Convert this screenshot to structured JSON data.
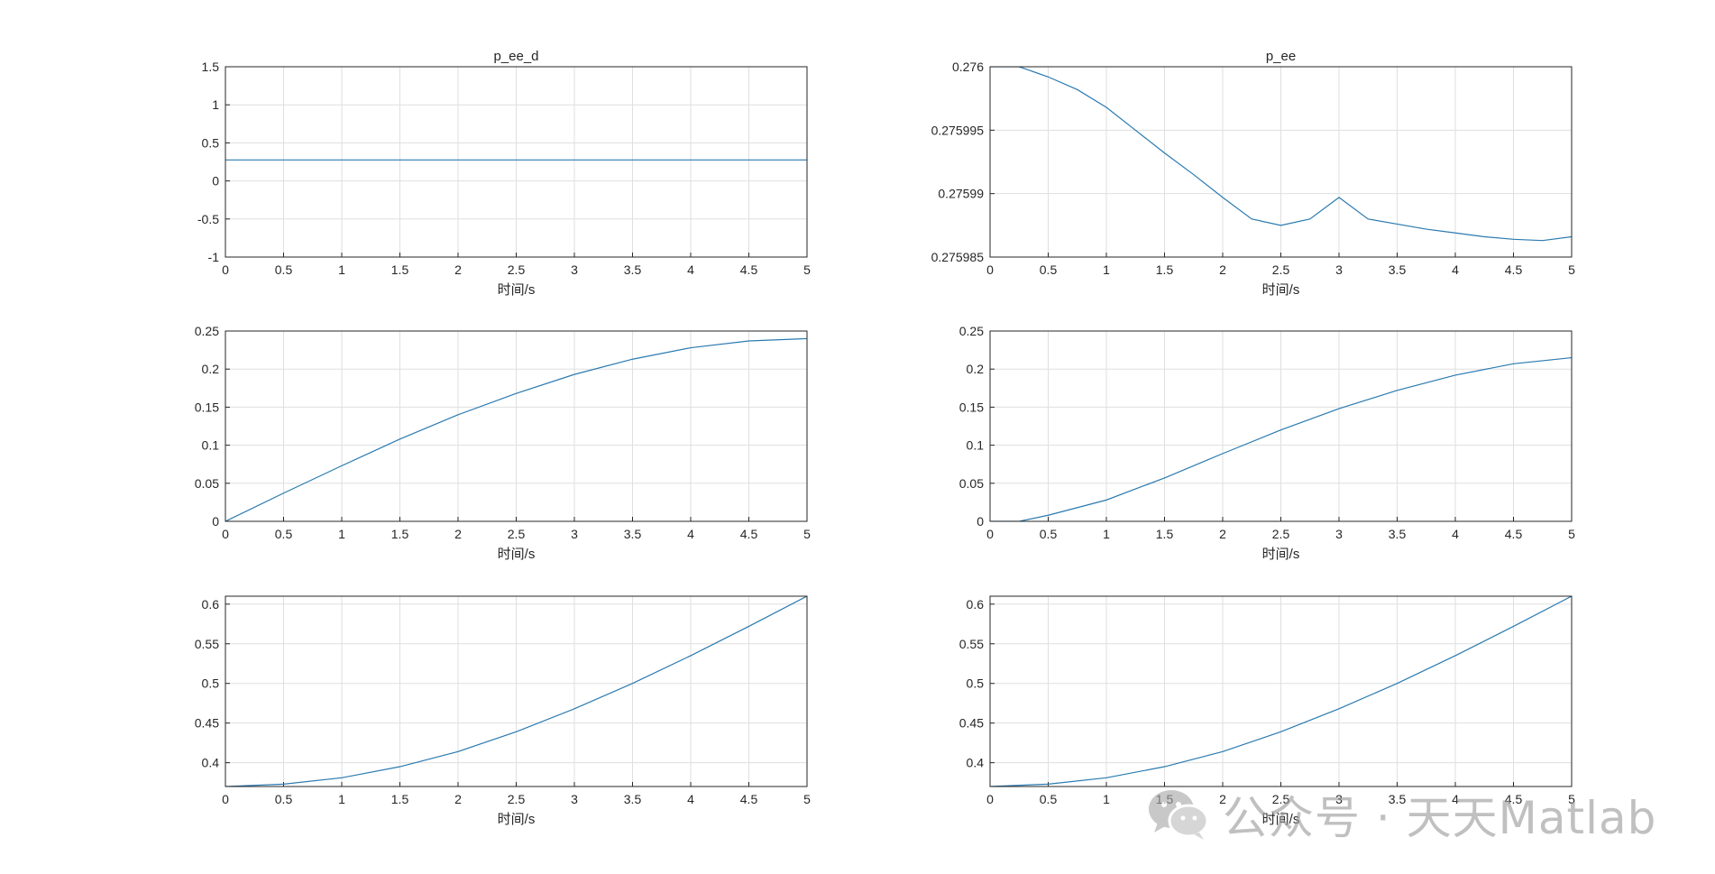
{
  "figure": {
    "line_color": "#2a7ab0",
    "axes_color": "#262626",
    "grid_color": "#dfdfdf"
  },
  "chart_data": [
    {
      "type": "line",
      "title": "p_ee_d",
      "xlabel": "时间/s",
      "ylabel": "",
      "xlim": [
        0,
        5
      ],
      "ylim": [
        -1,
        1.5
      ],
      "xticks": [
        "0",
        "0.5",
        "1",
        "1.5",
        "2",
        "2.5",
        "3",
        "3.5",
        "4",
        "4.5",
        "5"
      ],
      "yticks": [
        "-1",
        "-0.5",
        "0",
        "0.5",
        "1",
        "1.5"
      ],
      "grid": true,
      "series": [
        {
          "x": [
            0,
            0.5,
            1,
            1.5,
            2,
            2.5,
            3,
            3.5,
            4,
            4.5,
            5
          ],
          "y": [
            0.276,
            0.276,
            0.276,
            0.276,
            0.276,
            0.276,
            0.276,
            0.276,
            0.276,
            0.276,
            0.276
          ]
        }
      ]
    },
    {
      "type": "line",
      "title": "p_ee",
      "xlabel": "时间/s",
      "ylabel": "",
      "xlim": [
        0,
        5
      ],
      "ylim": [
        0.275985,
        0.276
      ],
      "xticks": [
        "0",
        "0.5",
        "1",
        "1.5",
        "2",
        "2.5",
        "3",
        "3.5",
        "4",
        "4.5",
        "5"
      ],
      "yticks": [
        "0.275985",
        "0.27599",
        "0.275995",
        "0.276"
      ],
      "grid": true,
      "series": [
        {
          "x": [
            0,
            0.25,
            0.5,
            0.75,
            1,
            1.25,
            1.5,
            1.75,
            2,
            2.25,
            2.5,
            2.75,
            3,
            3.25,
            3.5,
            3.75,
            4,
            4.25,
            4.5,
            4.75,
            5
          ],
          "y": [
            0.276,
            0.276,
            0.2759992,
            0.2759982,
            0.2759968,
            0.275995,
            0.2759932,
            0.2759915,
            0.2759897,
            0.275988,
            0.2759875,
            0.275988,
            0.2759897,
            0.275988,
            0.2759876,
            0.2759872,
            0.2759869,
            0.2759866,
            0.2759864,
            0.2759863,
            0.2759866
          ]
        }
      ]
    },
    {
      "type": "line",
      "title": "",
      "xlabel": "时间/s",
      "ylabel": "",
      "xlim": [
        0,
        5
      ],
      "ylim": [
        0,
        0.25
      ],
      "xticks": [
        "0",
        "0.5",
        "1",
        "1.5",
        "2",
        "2.5",
        "3",
        "3.5",
        "4",
        "4.5",
        "5"
      ],
      "yticks": [
        "0",
        "0.05",
        "0.1",
        "0.15",
        "0.2",
        "0.25"
      ],
      "grid": true,
      "series": [
        {
          "x": [
            0,
            0.5,
            1,
            1.5,
            2,
            2.5,
            3,
            3.5,
            4,
            4.5,
            5
          ],
          "y": [
            0,
            0.037,
            0.073,
            0.108,
            0.14,
            0.168,
            0.193,
            0.213,
            0.228,
            0.237,
            0.24
          ]
        }
      ]
    },
    {
      "type": "line",
      "title": "",
      "xlabel": "时间/s",
      "ylabel": "",
      "xlim": [
        0,
        5
      ],
      "ylim": [
        0,
        0.25
      ],
      "xticks": [
        "0",
        "0.5",
        "1",
        "1.5",
        "2",
        "2.5",
        "3",
        "3.5",
        "4",
        "4.5",
        "5"
      ],
      "yticks": [
        "0",
        "0.05",
        "0.1",
        "0.15",
        "0.2",
        "0.25"
      ],
      "grid": true,
      "series": [
        {
          "x": [
            0,
            0.25,
            0.5,
            1,
            1.5,
            2,
            2.5,
            3,
            3.5,
            4,
            4.5,
            5
          ],
          "y": [
            0,
            0,
            0.008,
            0.028,
            0.057,
            0.089,
            0.12,
            0.148,
            0.172,
            0.192,
            0.207,
            0.215
          ]
        }
      ]
    },
    {
      "type": "line",
      "title": "",
      "xlabel": "时间/s",
      "ylabel": "",
      "xlim": [
        0,
        5
      ],
      "ylim": [
        0.37,
        0.61
      ],
      "xticks": [
        "0",
        "0.5",
        "1",
        "1.5",
        "2",
        "2.5",
        "3",
        "3.5",
        "4",
        "4.5",
        "5"
      ],
      "yticks": [
        "0.4",
        "0.45",
        "0.5",
        "0.55",
        "0.6"
      ],
      "grid": true,
      "series": [
        {
          "x": [
            0,
            0.5,
            1,
            1.5,
            2,
            2.5,
            3,
            3.5,
            4,
            4.5,
            5
          ],
          "y": [
            0.37,
            0.373,
            0.381,
            0.395,
            0.414,
            0.439,
            0.468,
            0.5,
            0.535,
            0.572,
            0.61
          ]
        }
      ]
    },
    {
      "type": "line",
      "title": "",
      "xlabel": "时间/s",
      "ylabel": "",
      "xlim": [
        0,
        5
      ],
      "ylim": [
        0.37,
        0.61
      ],
      "xticks": [
        "0",
        "0.5",
        "1",
        "1.5",
        "2",
        "2.5",
        "3",
        "3.5",
        "4",
        "4.5",
        "5"
      ],
      "yticks": [
        "0.4",
        "0.45",
        "0.5",
        "0.55",
        "0.6"
      ],
      "grid": true,
      "series": [
        {
          "x": [
            0,
            0.5,
            1,
            1.5,
            2,
            2.5,
            3,
            3.5,
            4,
            4.5,
            5
          ],
          "y": [
            0.37,
            0.373,
            0.381,
            0.395,
            0.414,
            0.439,
            0.468,
            0.5,
            0.535,
            0.572,
            0.61
          ]
        }
      ]
    }
  ],
  "watermark": {
    "text": "公众号 · 天天Matlab",
    "icon": "wechat-icon"
  }
}
